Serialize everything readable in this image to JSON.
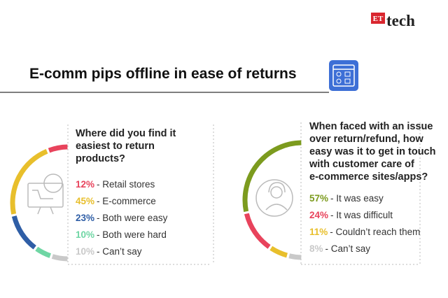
{
  "logo": {
    "brand": "ET",
    "name": "tech"
  },
  "title": "E-comm pips offline in ease of returns",
  "chart_data": [
    {
      "type": "pie",
      "title": [
        "Where did you find it",
        "easiest to return",
        "products?"
      ],
      "categories": [
        "- Retail stores",
        "- E-commerce",
        "- Both were easy",
        "- Both were hard",
        "- Can’t say"
      ],
      "values": [
        12,
        45,
        23,
        10,
        10
      ],
      "value_labels": [
        "12%",
        "45%",
        "23%",
        "10%",
        "10%"
      ],
      "colors": [
        "#e8435c",
        "#e8bf2c",
        "#2f5ea6",
        "#6fd6a4",
        "#c9c9c9"
      ]
    },
    {
      "type": "pie",
      "title": [
        "When faced with an issue",
        "over return/refund, how",
        "easy was it to get in touch",
        "with customer care of",
        "e-commerce sites/apps?"
      ],
      "categories": [
        "- It was easy",
        "- It was difficult",
        "- Couldn’t reach them",
        "- Can’t say"
      ],
      "values": [
        57,
        24,
        11,
        8
      ],
      "value_labels": [
        "57%",
        "24%",
        "11%",
        "8%"
      ],
      "colors": [
        "#7c9b1e",
        "#e8435c",
        "#e8bf2c",
        "#c9c9c9"
      ]
    }
  ]
}
